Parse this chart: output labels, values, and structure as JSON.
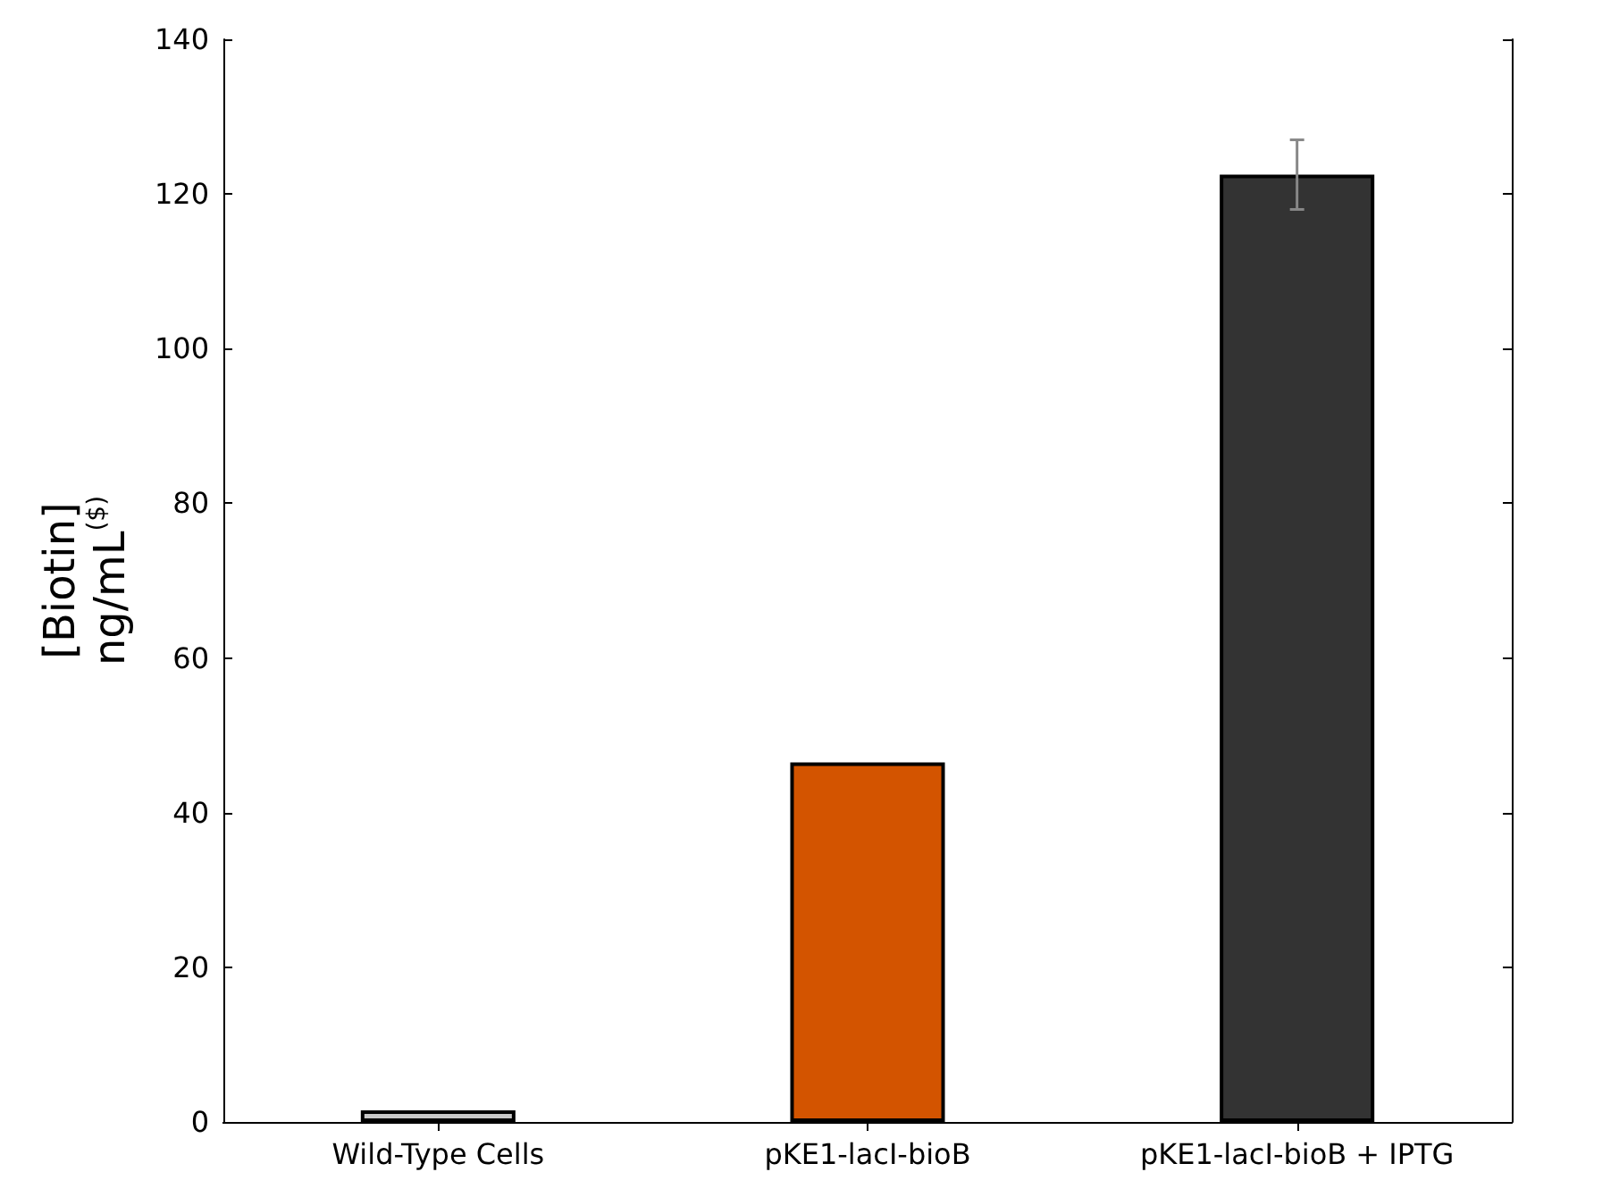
{
  "chart_data": {
    "type": "bar",
    "ylabel": "[Biotin]\nng/mL$^{($)}$",
    "categories": [
      "Wild-Type Cells",
      "pKE1-lacI-bioB",
      "pKE1-lacI-bioB + IPTG"
    ],
    "values": [
      1.5,
      46.5,
      122.5
    ],
    "colors": [
      "#c8c8c8",
      "#d35400",
      "#333333"
    ],
    "errors": [
      null,
      null,
      4.5
    ],
    "ylim": [
      0,
      140
    ],
    "yticks": [
      0,
      20,
      40,
      60,
      80,
      100,
      120,
      140
    ],
    "grid": false
  }
}
